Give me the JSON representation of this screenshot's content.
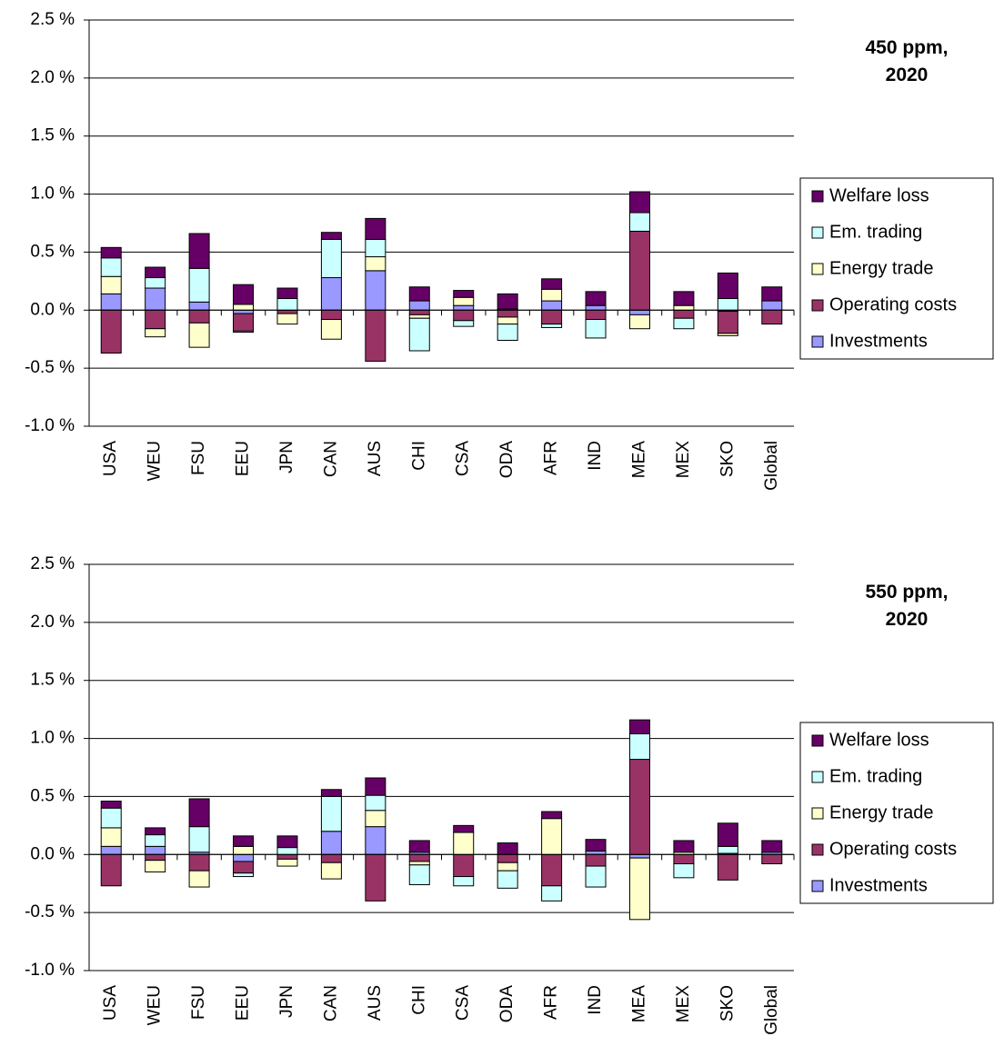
{
  "chart_data": [
    {
      "type": "bar",
      "stacked": true,
      "title": "450 ppm, 2020",
      "categories": [
        "USA",
        "WEU",
        "FSU",
        "EEU",
        "JPN",
        "CAN",
        "AUS",
        "CHI",
        "CSA",
        "ODA",
        "AFR",
        "IND",
        "MEA",
        "MEX",
        "SKO",
        "Global"
      ],
      "series": [
        {
          "name": "Investments",
          "color": "#9999ff",
          "values": [
            0.14,
            0.19,
            0.07,
            -0.03,
            0,
            0.28,
            0.34,
            0.08,
            0.04,
            0.01,
            0.08,
            0.04,
            -0.04,
            0,
            -0.01,
            0.08
          ]
        },
        {
          "name": "Operating costs",
          "color": "#993366",
          "values": [
            -0.37,
            -0.16,
            -0.11,
            -0.15,
            -0.03,
            -0.08,
            -0.44,
            -0.04,
            -0.09,
            -0.06,
            -0.12,
            -0.08,
            0.68,
            -0.07,
            -0.19,
            -0.12
          ]
        },
        {
          "name": "Energy trade",
          "color": "#ffffcc",
          "values": [
            0.15,
            -0.07,
            -0.21,
            0.05,
            -0.09,
            -0.17,
            0.12,
            -0.03,
            0.07,
            -0.06,
            0.1,
            0,
            -0.12,
            0.04,
            -0.02,
            0
          ]
        },
        {
          "name": "Em. trading",
          "color": "#ccffff",
          "values": [
            0.16,
            0.09,
            0.29,
            -0.01,
            0.1,
            0.33,
            0.15,
            -0.28,
            -0.05,
            -0.14,
            -0.03,
            -0.16,
            0.16,
            -0.09,
            0.1,
            0
          ]
        },
        {
          "name": "Welfare loss",
          "color": "#660066",
          "values": [
            0.09,
            0.09,
            0.3,
            0.17,
            0.09,
            0.06,
            0.18,
            0.12,
            0.06,
            0.13,
            0.09,
            0.12,
            0.18,
            0.12,
            0.22,
            0.12
          ]
        }
      ],
      "ylim": [
        -1.0,
        2.5
      ],
      "yticks": [
        {
          "value": -1.0,
          "label": "-1.0 %"
        },
        {
          "value": -0.5,
          "label": "-0.5 %"
        },
        {
          "value": 0,
          "label": "0.0 %"
        },
        {
          "value": 0.5,
          "label": "0.5 %"
        },
        {
          "value": 1.0,
          "label": "1.0 %"
        },
        {
          "value": 1.5,
          "label": "1.5 %"
        },
        {
          "value": 2.0,
          "label": "2.0 %"
        },
        {
          "value": 2.5,
          "label": "2.5 %"
        }
      ],
      "grid": true,
      "legend": "right"
    },
    {
      "type": "bar",
      "stacked": true,
      "title": "550 ppm, 2020",
      "categories": [
        "USA",
        "WEU",
        "FSU",
        "EEU",
        "JPN",
        "CAN",
        "AUS",
        "CHI",
        "CSA",
        "ODA",
        "AFR",
        "IND",
        "MEA",
        "MEX",
        "SKO",
        "Global"
      ],
      "series": [
        {
          "name": "Investments",
          "color": "#9999ff",
          "values": [
            0.07,
            0.07,
            0.02,
            -0.06,
            0,
            0.2,
            0.24,
            0.02,
            0,
            0,
            0,
            0.03,
            -0.03,
            0,
            0.01,
            0.02
          ]
        },
        {
          "name": "Operating costs",
          "color": "#993366",
          "values": [
            -0.27,
            -0.05,
            -0.14,
            -0.1,
            -0.04,
            -0.07,
            -0.4,
            -0.06,
            -0.19,
            -0.07,
            -0.27,
            -0.1,
            0.82,
            -0.08,
            -0.22,
            -0.08
          ]
        },
        {
          "name": "Energy trade",
          "color": "#ffffcc",
          "values": [
            0.16,
            -0.1,
            -0.14,
            0.07,
            -0.06,
            -0.14,
            0.14,
            -0.03,
            0.19,
            -0.07,
            0.31,
            0,
            -0.53,
            0.02,
            0,
            0
          ]
        },
        {
          "name": "Em. trading",
          "color": "#ccffff",
          "values": [
            0.17,
            0.1,
            0.22,
            -0.03,
            0.06,
            0.3,
            0.13,
            -0.17,
            -0.08,
            -0.15,
            -0.13,
            -0.18,
            0.22,
            -0.12,
            0.06,
            0
          ]
        },
        {
          "name": "Welfare loss",
          "color": "#660066",
          "values": [
            0.06,
            0.06,
            0.24,
            0.09,
            0.1,
            0.06,
            0.15,
            0.1,
            0.06,
            0.1,
            0.06,
            0.1,
            0.12,
            0.1,
            0.2,
            0.1
          ]
        }
      ],
      "ylim": [
        -1.0,
        2.5
      ],
      "yticks": [
        {
          "value": -1.0,
          "label": "-1.0 %"
        },
        {
          "value": -0.5,
          "label": "-0.5 %"
        },
        {
          "value": 0,
          "label": "0.0 %"
        },
        {
          "value": 0.5,
          "label": "0.5 %"
        },
        {
          "value": 1.0,
          "label": "1.0 %"
        },
        {
          "value": 1.5,
          "label": "1.5 %"
        },
        {
          "value": 2.0,
          "label": "2.0 %"
        },
        {
          "value": 2.5,
          "label": "2.5 %"
        }
      ],
      "grid": true,
      "legend": "right"
    }
  ]
}
